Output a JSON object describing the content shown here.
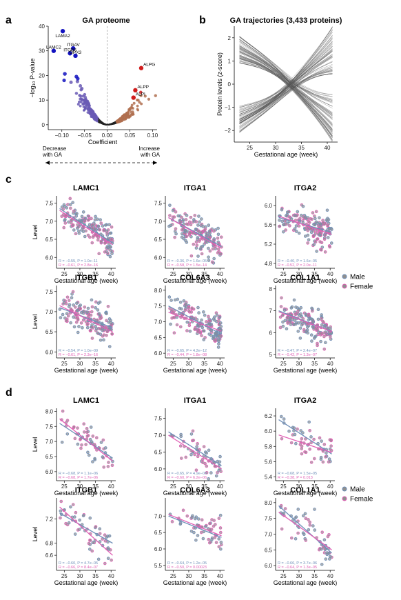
{
  "panel_labels": [
    "a",
    "b",
    "c",
    "d"
  ],
  "colors": {
    "male": "#6f8fb8",
    "female": "#e060b5",
    "volcano_up_sig": "#d01c1c",
    "volcano_down_sig": "#1212c0",
    "volcano_down_mid": "#6a5bb5",
    "volcano_up_mid": "#b07050",
    "trajectory": "#555555",
    "dot_fill": "#8f8f8f"
  },
  "legend": {
    "male": "Male",
    "female": "Female"
  },
  "chart_data": [
    {
      "id": "volcano",
      "type": "scatter",
      "title": "GA proteome",
      "xlabel": "Coefficient",
      "ylabel": "−log₁₀ P-value",
      "xlim": [
        -0.13,
        0.11
      ],
      "ylim": [
        -2,
        40
      ],
      "xticks": [
        -0.1,
        -0.05,
        0.0,
        0.05,
        0.1
      ],
      "xtick_labels": [
        "−0.10",
        "−0.05",
        "0.00",
        "0.05",
        "0.10"
      ],
      "yticks": [
        0,
        10,
        20,
        30,
        40
      ],
      "ytick_labels": [
        "0",
        "10",
        "20",
        "30",
        "40"
      ],
      "annotation_left": "Decrease\nwith GA",
      "annotation_right": "Increase\nwith GA",
      "labeled_points": [
        {
          "label": "LAMA2",
          "x": -0.098,
          "y": 38
        },
        {
          "label": "LAMC2",
          "x": -0.118,
          "y": 30
        },
        {
          "label": "ITGAV",
          "x": -0.075,
          "y": 31
        },
        {
          "label": "ITGB6",
          "x": -0.082,
          "y": 29
        },
        {
          "label": "GPX3",
          "x": -0.07,
          "y": 28
        },
        {
          "label": "ALPG",
          "x": 0.075,
          "y": 23
        },
        {
          "label": "ALPP",
          "x": 0.062,
          "y": 14
        },
        {
          "label": "ALPI",
          "x": 0.058,
          "y": 11
        }
      ]
    },
    {
      "id": "trajectories",
      "type": "line",
      "title": "GA trajectories (3,433 proteins)",
      "xlabel": "Gestational age (week)",
      "ylabel": "Protein levels (z-score)",
      "xlim": [
        22,
        42
      ],
      "ylim": [
        -2.5,
        2.5
      ],
      "xticks": [
        25,
        30,
        35,
        40
      ],
      "yticks": [
        -2,
        -1,
        0,
        1,
        2
      ]
    },
    {
      "id": "c",
      "type": "scatter",
      "xlabel": "Gestational age (week)",
      "ylabel": "Level",
      "xticks": [
        25,
        30,
        35,
        40
      ],
      "xlim": [
        22.5,
        41.5
      ],
      "panels": [
        {
          "title": "LAMC1",
          "ylim": [
            5.7,
            7.7
          ],
          "yticks": [
            6.0,
            6.5,
            7.0,
            7.5
          ],
          "ytick_labels": [
            "6.0",
            "6.5",
            "7.0",
            "7.5"
          ],
          "male_fit": [
            7.35,
            6.4
          ],
          "female_fit": [
            7.3,
            6.35
          ],
          "stat_male": "R = −0.55, P = 1.0e−11",
          "stat_female": "R = −0.61, P = 2.8e−16"
        },
        {
          "title": "ITGA1",
          "ylim": [
            5.7,
            7.7
          ],
          "yticks": [
            6.0,
            6.5,
            7.0,
            7.5
          ],
          "ytick_labels": [
            "6.0",
            "6.5",
            "7.0",
            "7.5"
          ],
          "male_fit": [
            7.1,
            6.3
          ],
          "female_fit": [
            7.1,
            6.25
          ],
          "stat_male": "R = −0.36, P = 1.6e−05",
          "stat_female": "R = −0.58, P = 1.5e−14"
        },
        {
          "title": "ITGA2",
          "ylim": [
            4.7,
            6.2
          ],
          "yticks": [
            4.8,
            5.2,
            5.6,
            6.0
          ],
          "ytick_labels": [
            "4.8",
            "5.2",
            "5.6",
            "6.0"
          ],
          "male_fit": [
            5.75,
            5.45
          ],
          "female_fit": [
            5.78,
            5.4
          ],
          "stat_male": "R = −0.40, P = 1.6e−05",
          "stat_female": "R = −0.52, P = 2.0e−11"
        },
        {
          "title": "ITGB1",
          "ylim": [
            5.85,
            7.65
          ],
          "yticks": [
            6.0,
            6.5,
            7.0,
            7.5
          ],
          "ytick_labels": [
            "6.0",
            "6.5",
            "7.0",
            "7.5"
          ],
          "male_fit": [
            7.1,
            6.6
          ],
          "female_fit": [
            7.15,
            6.5
          ],
          "stat_male": "R = −0.54, P = 1.0e−09",
          "stat_female": "R = −0.61, P = 2.3e−16"
        },
        {
          "title": "COL6A3",
          "ylim": [
            5.85,
            8.15
          ],
          "yticks": [
            6.0,
            6.5,
            7.0,
            7.5,
            8.0
          ],
          "ytick_labels": [
            "6.0",
            "6.5",
            "7.0",
            "7.5",
            "8.0"
          ],
          "male_fit": [
            7.5,
            6.6
          ],
          "female_fit": [
            7.3,
            6.7
          ],
          "stat_male": "R = −0.65, P = 4.2e−12",
          "stat_female": "R = −0.44, P = 1.8e−08"
        },
        {
          "title": "COL1A1",
          "ylim": [
            4.85,
            8.15
          ],
          "yticks": [
            5,
            6,
            7,
            8
          ],
          "ytick_labels": [
            "5",
            "6",
            "7",
            "8"
          ],
          "male_fit": [
            7.0,
            6.05
          ],
          "female_fit": [
            6.95,
            6.05
          ],
          "stat_male": "R = −0.47, P = 2.4e−07",
          "stat_female": "R = −0.42, P = 1.3e−07"
        }
      ]
    },
    {
      "id": "d",
      "type": "scatter",
      "xlabel": "Gestational age (week)",
      "ylabel": "Level",
      "xticks": [
        25,
        30,
        35,
        40
      ],
      "xlim": [
        22.5,
        41.5
      ],
      "panels": [
        {
          "title": "LAMC1",
          "ylim": [
            5.7,
            8.1
          ],
          "yticks": [
            6.0,
            6.5,
            7.0,
            7.5,
            8.0
          ],
          "ytick_labels": [
            "6.0",
            "6.5",
            "7.0",
            "7.5",
            "8.0"
          ],
          "male_fit": [
            7.6,
            6.45
          ],
          "female_fit": [
            7.75,
            6.35
          ],
          "stat_male": "R = −0.68, P = 1.1e−06",
          "stat_female": "R = −0.68, P = 1.7e−06"
        },
        {
          "title": "ITGA1",
          "ylim": [
            5.65,
            7.8
          ],
          "yticks": [
            6.0,
            6.5,
            7.0,
            7.5
          ],
          "ytick_labels": [
            "6.0",
            "6.5",
            "7.0",
            "7.5"
          ],
          "male_fit": [
            7.1,
            6.1
          ],
          "female_fit": [
            7.0,
            6.0
          ],
          "stat_male": "R = −0.65, P = 4.9e−06",
          "stat_female": "R = −0.60, P = 6.2e−06"
        },
        {
          "title": "ITGA2",
          "ylim": [
            5.35,
            6.3
          ],
          "yticks": [
            5.4,
            5.6,
            5.8,
            6.0,
            6.2
          ],
          "ytick_labels": [
            "5.4",
            "5.6",
            "5.8",
            "6.0",
            "6.2"
          ],
          "male_fit": [
            6.15,
            5.7
          ],
          "female_fit": [
            5.95,
            5.72
          ],
          "stat_male": "R = −0.68, P = 1.5e−05",
          "stat_female": "R = −0.38, P = 0.013"
        },
        {
          "title": "ITGB1",
          "ylim": [
            6.35,
            7.55
          ],
          "yticks": [
            6.6,
            6.8,
            7.2
          ],
          "ytick_labels": [
            "6.6",
            "6.8",
            "7.2"
          ],
          "male_fit": [
            7.3,
            6.8
          ],
          "female_fit": [
            7.4,
            6.6
          ],
          "stat_male": "R = −0.60, P = 4.7e−05",
          "stat_female": "R = −0.66, P = 8.4e−07"
        },
        {
          "title": "COL6A3",
          "ylim": [
            5.35,
            7.55
          ],
          "yticks": [
            5.5,
            6.0,
            6.5,
            7.0
          ],
          "ytick_labels": [
            "5.5",
            "6.0",
            "6.5",
            "7.0"
          ],
          "male_fit": [
            7.0,
            6.35
          ],
          "female_fit": [
            7.05,
            6.4
          ],
          "stat_male": "R = −0.64, P = 1.2e−05",
          "stat_female": "R = −0.50, P = 0.00023"
        },
        {
          "title": "COL1A1",
          "ylim": [
            5.85,
            8.15
          ],
          "yticks": [
            6.0,
            6.5,
            7.0,
            7.5,
            8.0
          ],
          "ytick_labels": [
            "6.0",
            "6.5",
            "7.0",
            "7.5",
            "8.0"
          ],
          "male_fit": [
            7.9,
            6.4
          ],
          "female_fit": [
            7.7,
            6.5
          ],
          "stat_male": "R = −0.66, P = 3.7e−06",
          "stat_female": "R = −0.64, P = 1.3e−05"
        }
      ]
    }
  ]
}
